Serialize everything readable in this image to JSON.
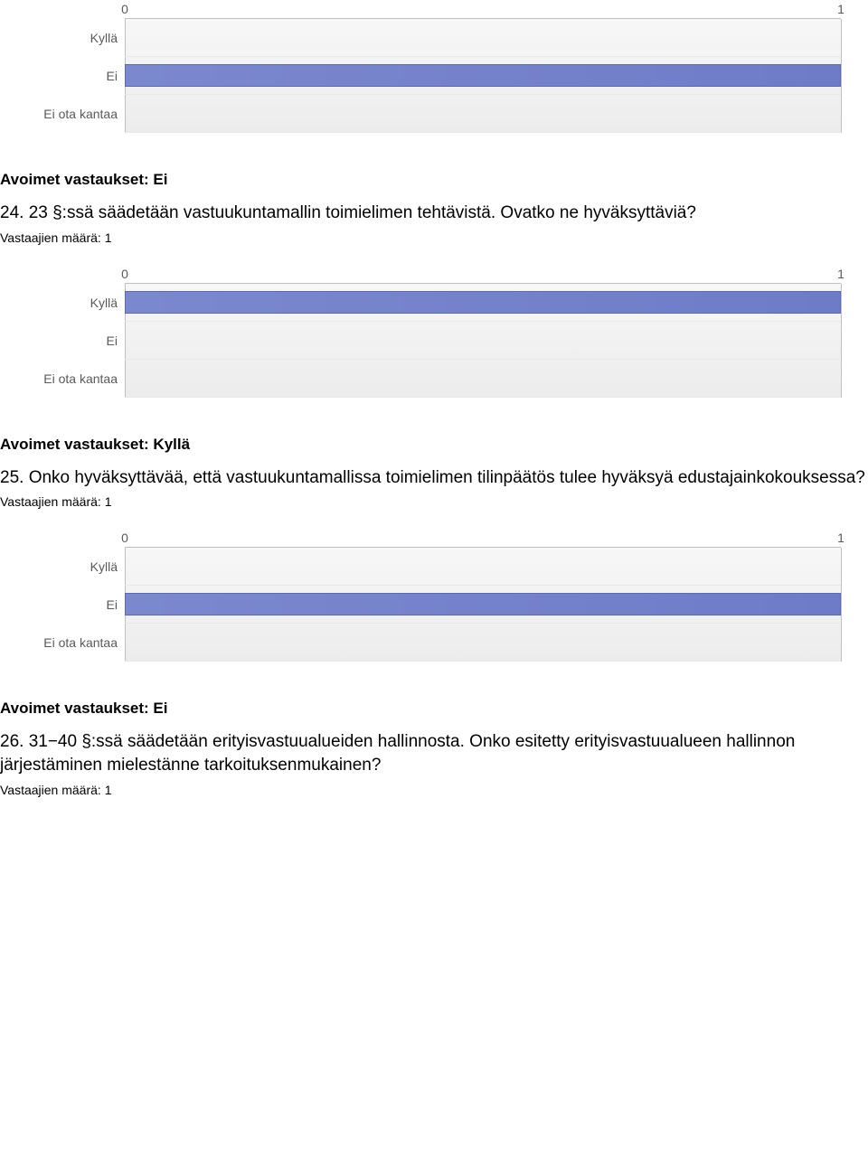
{
  "charts": [
    {
      "type": "bar",
      "xmin": 0,
      "xmax": 1,
      "ticks": [
        {
          "pos_pct": 0,
          "label": "0"
        },
        {
          "pos_pct": 100,
          "label": "1"
        }
      ],
      "rows": [
        {
          "label": "Kyllä",
          "value_pct": 0
        },
        {
          "label": "Ei",
          "value_pct": 100
        },
        {
          "label": "Ei ota kantaa",
          "value_pct": 0
        }
      ],
      "bar_color": "#7b88ce",
      "bg_gradient_top": "#f7f7f7",
      "bg_gradient_bottom": "#ececec",
      "grid_color": "#bfbfbf",
      "label_color": "#595959"
    },
    {
      "type": "bar",
      "xmin": 0,
      "xmax": 1,
      "ticks": [
        {
          "pos_pct": 0,
          "label": "0"
        },
        {
          "pos_pct": 100,
          "label": "1"
        }
      ],
      "rows": [
        {
          "label": "Kyllä",
          "value_pct": 100
        },
        {
          "label": "Ei",
          "value_pct": 0
        },
        {
          "label": "Ei ota kantaa",
          "value_pct": 0
        }
      ],
      "bar_color": "#7b88ce",
      "bg_gradient_top": "#f7f7f7",
      "bg_gradient_bottom": "#ececec",
      "grid_color": "#bfbfbf",
      "label_color": "#595959"
    },
    {
      "type": "bar",
      "xmin": 0,
      "xmax": 1,
      "ticks": [
        {
          "pos_pct": 0,
          "label": "0"
        },
        {
          "pos_pct": 100,
          "label": "1"
        }
      ],
      "rows": [
        {
          "label": "Kyllä",
          "value_pct": 0
        },
        {
          "label": "Ei",
          "value_pct": 100
        },
        {
          "label": "Ei ota kantaa",
          "value_pct": 0
        }
      ],
      "bar_color": "#7b88ce",
      "bg_gradient_top": "#f7f7f7",
      "bg_gradient_bottom": "#ececec",
      "grid_color": "#bfbfbf",
      "label_color": "#595959"
    }
  ],
  "sections": [
    {
      "open_heading": "Avoimet vastaukset: Ei",
      "question": "24. 23 §:ssä säädetään vastuukuntamallin toimielimen tehtävistä. Ovatko ne hyväksyttäviä?",
      "resp": "Vastaajien määrä: 1",
      "chart": 1
    },
    {
      "open_heading": "Avoimet vastaukset: Kyllä",
      "question": "25. Onko hyväksyttävää, että vastuukuntamallissa toimielimen tilinpäätös tulee hyväksyä edustajainkokouksessa?",
      "resp": "Vastaajien määrä: 1",
      "chart": 2
    },
    {
      "open_heading": "Avoimet vastaukset: Ei",
      "question": "26. 31−40 §:ssä säädetään erityisvastuualueiden hallinnosta. Onko esitetty erityisvastuualueen hallinnon järjestäminen mielestänne tarkoituksenmukainen?",
      "resp": "Vastaajien määrä: 1",
      "chart": null
    }
  ]
}
